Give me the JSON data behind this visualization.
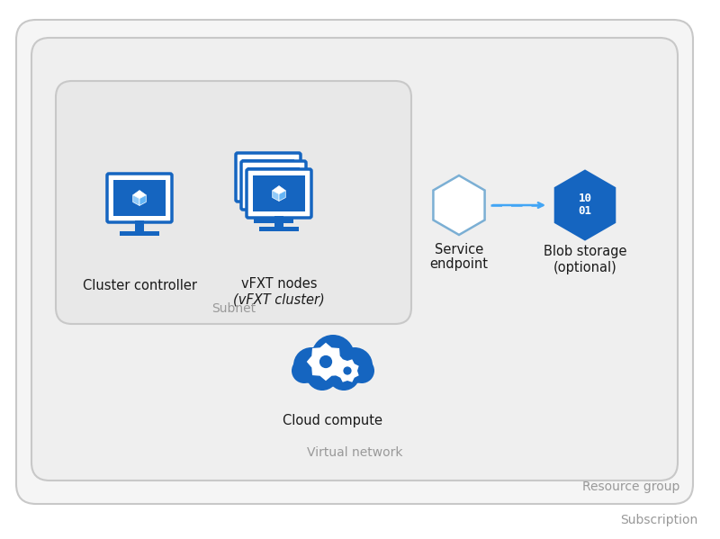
{
  "bg_color": "#ffffff",
  "box_edge": "#c8c8c8",
  "box_face_outer": "#f5f5f5",
  "box_face_mid": "#efefef",
  "box_face_inner": "#e8e8e8",
  "blue_dark": "#1565c0",
  "blue_mid": "#1e88e5",
  "blue_light": "#90caf9",
  "hex_outline": "#7bafd4",
  "gray_text": "#999999",
  "black_text": "#1a1a1a",
  "subscription_label": "Subscription",
  "resource_group_label": "Resource group",
  "vnet_label": "Virtual network",
  "subnet_label": "Subnet",
  "cluster_controller_label": "Cluster controller",
  "vfxt_nodes_line1": "vFXT nodes",
  "vfxt_nodes_line2": "(vFXT cluster)",
  "service_endpoint_label_line1": "Service",
  "service_endpoint_label_line2": "endpoint",
  "blob_storage_label_line1": "Blob storage",
  "blob_storage_label_line2": "(optional)",
  "cloud_compute_label": "Cloud compute",
  "arrow_color": "#42a5f5"
}
